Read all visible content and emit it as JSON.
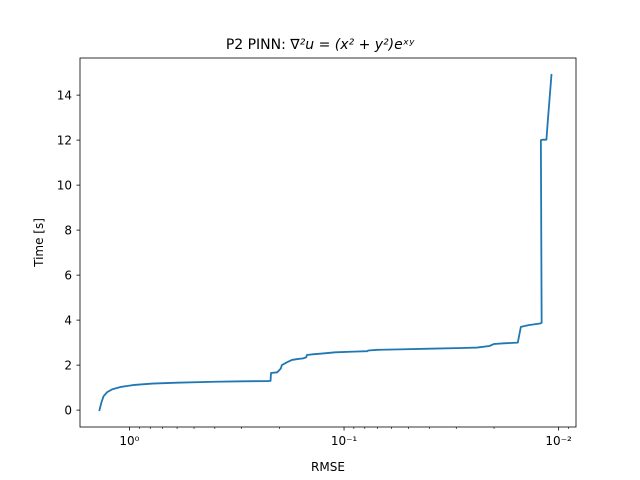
{
  "chart_data": {
    "type": "line",
    "title_prefix": "P2 PINN: ",
    "title_math": "∇²u = (x² + y²)eˣʸ",
    "xlabel": "RMSE",
    "ylabel": "Time [s]",
    "xscale": "log",
    "x_inverted": true,
    "xlim": [
      1.7,
      0.0083
    ],
    "ylim": [
      -0.75,
      15.65
    ],
    "grid": false,
    "x_ticks": [
      {
        "value": 1,
        "label": "10⁰"
      },
      {
        "value": 0.1,
        "label": "10⁻¹"
      },
      {
        "value": 0.01,
        "label": "10⁻²"
      }
    ],
    "y_ticks": [
      0,
      2,
      4,
      6,
      8,
      10,
      12,
      14
    ],
    "series": [
      {
        "color": "#1f77b4",
        "points": [
          [
            1.38,
            0.0
          ],
          [
            1.35,
            0.35
          ],
          [
            1.32,
            0.62
          ],
          [
            1.27,
            0.8
          ],
          [
            1.2,
            0.93
          ],
          [
            1.1,
            1.03
          ],
          [
            0.95,
            1.12
          ],
          [
            0.78,
            1.18
          ],
          [
            0.6,
            1.22
          ],
          [
            0.4,
            1.26
          ],
          [
            0.3,
            1.28
          ],
          [
            0.23,
            1.29
          ],
          [
            0.22,
            1.3
          ],
          [
            0.219,
            1.65
          ],
          [
            0.205,
            1.68
          ],
          [
            0.197,
            1.85
          ],
          [
            0.195,
            2.0
          ],
          [
            0.185,
            2.12
          ],
          [
            0.175,
            2.23
          ],
          [
            0.165,
            2.27
          ],
          [
            0.155,
            2.3
          ],
          [
            0.15,
            2.35
          ],
          [
            0.149,
            2.45
          ],
          [
            0.14,
            2.48
          ],
          [
            0.125,
            2.52
          ],
          [
            0.11,
            2.57
          ],
          [
            0.09,
            2.6
          ],
          [
            0.078,
            2.62
          ],
          [
            0.077,
            2.65
          ],
          [
            0.07,
            2.68
          ],
          [
            0.055,
            2.7
          ],
          [
            0.04,
            2.73
          ],
          [
            0.028,
            2.76
          ],
          [
            0.024,
            2.78
          ],
          [
            0.021,
            2.85
          ],
          [
            0.02,
            2.94
          ],
          [
            0.018,
            2.97
          ],
          [
            0.0155,
            3.0
          ],
          [
            0.015,
            3.7
          ],
          [
            0.0138,
            3.78
          ],
          [
            0.0122,
            3.85
          ],
          [
            0.012,
            3.88
          ],
          [
            0.0121,
            12.0
          ],
          [
            0.0118,
            12.02
          ],
          [
            0.0114,
            12.02
          ],
          [
            0.0112,
            13.0
          ],
          [
            0.0108,
            14.9
          ]
        ]
      }
    ]
  }
}
